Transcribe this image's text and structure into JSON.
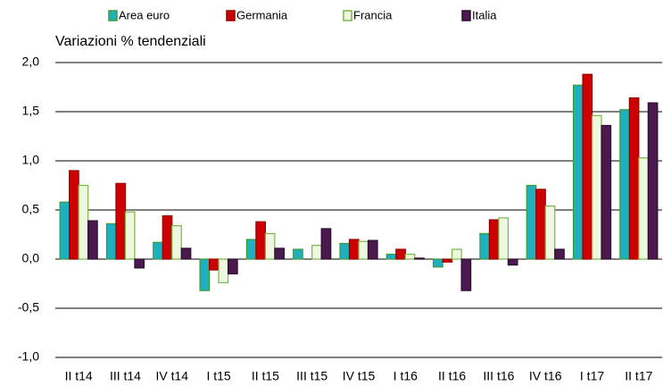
{
  "chart_data": {
    "type": "bar",
    "subtitle": "Variazioni % tendenziali",
    "categories": [
      "II t14",
      "III t14",
      "IV t14",
      "I t15",
      "II t15",
      "III t15",
      "IV t15",
      "I t16",
      "II t16",
      "III t16",
      "IV t16",
      "I t17",
      "II t17"
    ],
    "series": [
      {
        "name": "Area euro",
        "color": "#1fb0c0",
        "edge": "#3a9a3a",
        "values": [
          0.58,
          0.36,
          0.17,
          -0.32,
          0.2,
          0.1,
          0.16,
          0.05,
          -0.08,
          0.26,
          0.75,
          1.77,
          1.52
        ]
      },
      {
        "name": "Germania",
        "color": "#cc0000",
        "edge": "#990000",
        "values": [
          0.9,
          0.77,
          0.44,
          -0.11,
          0.38,
          0.0,
          0.2,
          0.1,
          -0.03,
          0.4,
          0.71,
          1.88,
          1.64
        ]
      },
      {
        "name": "Francia",
        "color": "#eef8e0",
        "edge": "#7ab648",
        "values": [
          0.75,
          0.48,
          0.34,
          -0.24,
          0.26,
          0.14,
          0.18,
          0.05,
          0.1,
          0.42,
          0.54,
          1.46,
          1.03
        ]
      },
      {
        "name": "Italia",
        "color": "#4a1a4e",
        "edge": "#2e0e30",
        "values": [
          0.39,
          -0.09,
          0.11,
          -0.15,
          0.11,
          0.31,
          0.19,
          0.01,
          -0.32,
          -0.06,
          0.1,
          1.36,
          1.59
        ]
      }
    ],
    "ylim": [
      -1.0,
      2.0
    ],
    "yticks": [
      {
        "value": -1.0,
        "label": "-1,0"
      },
      {
        "value": -0.5,
        "label": "-0,5"
      },
      {
        "value": 0.0,
        "label": "0,0"
      },
      {
        "value": 0.5,
        "label": "0,5"
      },
      {
        "value": 1.0,
        "label": "1,0"
      },
      {
        "value": 1.5,
        "label": "1,5"
      },
      {
        "value": 2.0,
        "label": "2,0"
      }
    ],
    "grid": true,
    "legend": "top"
  }
}
